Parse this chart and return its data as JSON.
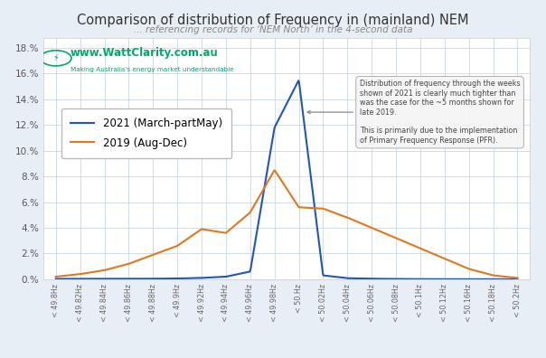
{
  "title": "Comparison of distribution of Frequency in (mainland) NEM",
  "subtitle": "... referencing records for ‘NEM North’ in the 4-second data",
  "color_2021": "#2255BB",
  "color_2019": "#E07820",
  "legend_2021": "2021 (March-partMay)",
  "legend_2019": "2019 (Aug-Dec)",
  "bg_color": "#e8eef5",
  "plot_bg": "#ffffff",
  "grid_color": "#c8d8e4",
  "wc_green": "#00AA66",
  "annotation_text": "Distribution of frequency through the weeks\nshown of 2021 is clearly much tighter than\nwas the case for the ~5 months shown for\nlate 2019.\n\nThis is primarily due to the implementation\nof Primary Frequency Response (PFR).",
  "x_labels": [
    "< 49.8Hz",
    "< 49.82Hz",
    "< 49.84Hz",
    "< 49.86Hz",
    "< 49.88Hz",
    "< 49.9Hz",
    "< 49.92Hz",
    "< 49.94Hz",
    "< 49.96Hz",
    "< 49.98Hz",
    "< 50.Hz",
    "< 50.02Hz",
    "< 50.04Hz",
    "< 50.06Hz",
    "< 50.08Hz",
    "< 50.1Hz",
    "< 50.12Hz",
    "< 50.16Hz",
    "< 50.18Hz",
    "< 50.2Hz"
  ],
  "blue_y": [
    0.0003,
    0.0003,
    0.0003,
    0.0004,
    0.0004,
    0.0006,
    0.001,
    0.003,
    0.006,
    0.118,
    0.155,
    0.003,
    0.001,
    0.0006,
    0.0003,
    0.00015,
    0.0001,
    6e-05,
    3e-05,
    2e-05
  ],
  "orange_y": [
    0.003,
    0.005,
    0.008,
    0.013,
    0.02,
    0.027,
    0.035,
    0.04,
    0.056,
    0.085,
    0.056,
    0.055,
    0.048,
    0.04,
    0.032,
    0.024,
    0.016,
    0.008,
    0.003,
    0.001
  ],
  "yticks": [
    0.0,
    0.02,
    0.04,
    0.06,
    0.08,
    0.1,
    0.12,
    0.14,
    0.16,
    0.18
  ],
  "ytick_labels": [
    "0.%",
    "2.%",
    "4.%",
    "6.%",
    "8.%",
    "10.%",
    "12.%",
    "14.%",
    "16.%",
    "18.%"
  ],
  "ylim": [
    0.0,
    0.188
  ]
}
